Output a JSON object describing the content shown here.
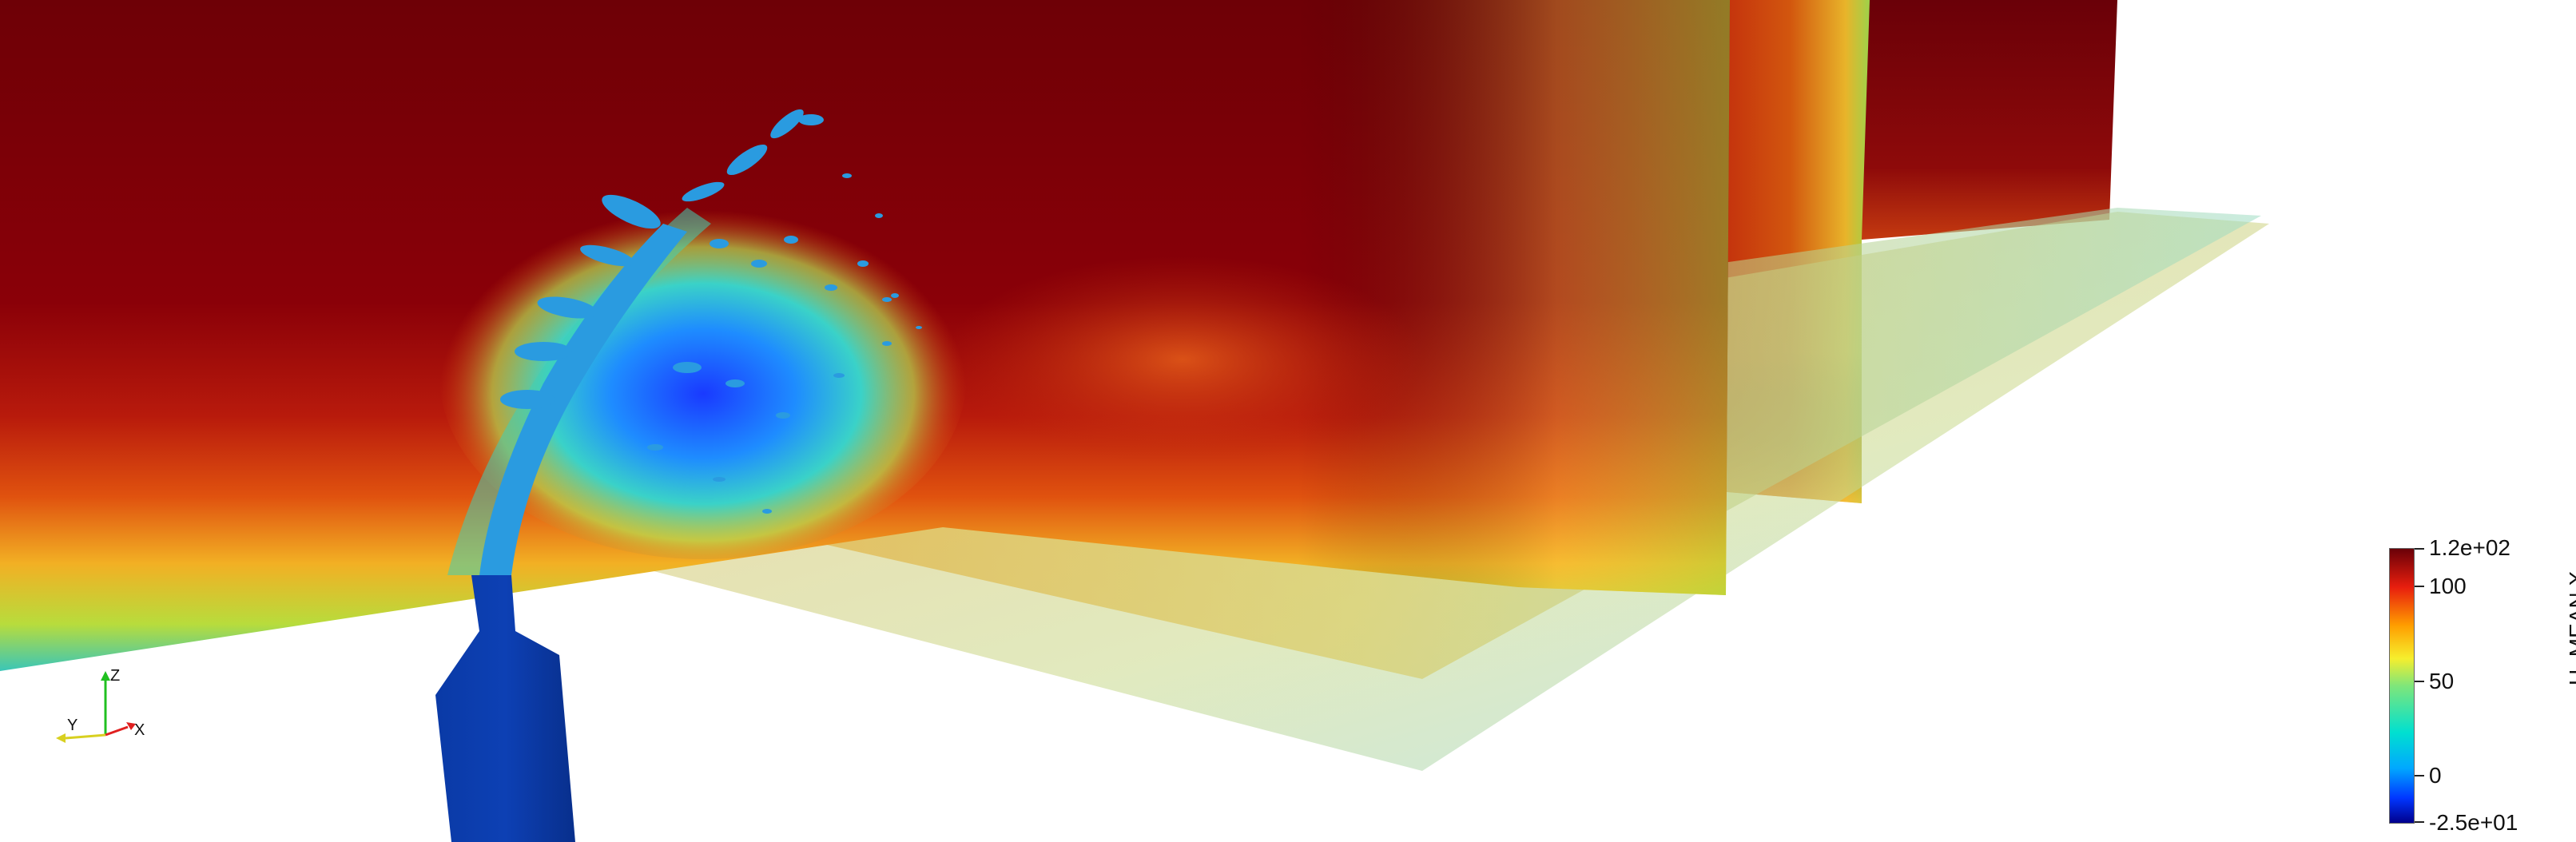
{
  "scene": {
    "description_free": true,
    "colormap": [
      "#00008c",
      "#0036ff",
      "#00a8ff",
      "#00e0d0",
      "#7fe67a",
      "#f6ee2d",
      "#ff9e00",
      "#e81e0e",
      "#6a0008"
    ],
    "background_color": "#ffffff",
    "injector_color": "#0a3aa6",
    "isosurface_color": "#2a9be0"
  },
  "axes": {
    "x_label": "X",
    "y_label": "Y",
    "z_label": "Z",
    "x_color": "#e02020",
    "y_color": "#d8d020",
    "z_color": "#20c020"
  },
  "legend": {
    "title": "U_MEAN X",
    "max_label": "1.2e+02",
    "label_100": "100",
    "label_50": "50",
    "label_0": "0",
    "min_label": "-2.5e+01",
    "range": [
      -25,
      120
    ]
  }
}
